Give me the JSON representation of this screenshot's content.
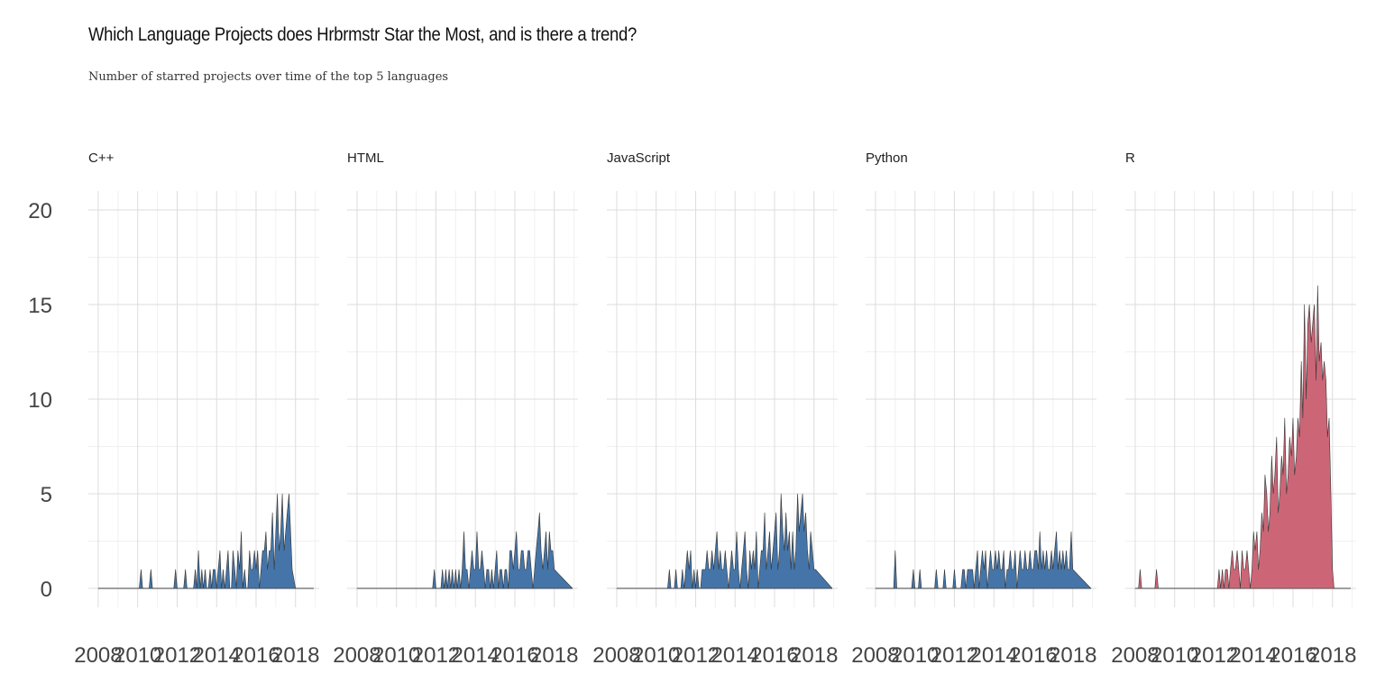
{
  "title": "Which Language Projects does Hrbrmstr Star the Most, and is there a trend?",
  "subtitle": "Number of starred projects over time of the top 5 languages",
  "chart_data": {
    "type": "area",
    "title": "Which Language Projects does Hrbrmstr Star the Most, and is there a trend?",
    "subtitle": "Number of starred projects over time of the top 5 languages",
    "xlabel": "",
    "ylabel": "",
    "x_unit": "year",
    "xlim": [
      2007.5,
      2019.2
    ],
    "ylim": [
      0,
      21
    ],
    "x_ticks": [
      2008,
      2010,
      2012,
      2014,
      2016,
      2018
    ],
    "y_ticks": [
      0,
      5,
      10,
      15,
      20
    ],
    "grid": true,
    "legend": "none",
    "colors": {
      "default": "#4575a8",
      "highlight": "#cc6677",
      "outline": "#333333",
      "baseline": "#888888"
    },
    "facets": [
      {
        "name": "C++",
        "color": "#4575a8",
        "x": [
          2008.0,
          2010.08,
          2010.17,
          2010.25,
          2010.58,
          2010.67,
          2010.75,
          2011.83,
          2011.92,
          2012.0,
          2012.33,
          2012.42,
          2012.5,
          2012.83,
          2012.92,
          2013.0,
          2013.08,
          2013.17,
          2013.25,
          2013.33,
          2013.42,
          2013.5,
          2013.58,
          2013.67,
          2013.75,
          2013.83,
          2013.92,
          2014.0,
          2014.08,
          2014.17,
          2014.25,
          2014.33,
          2014.42,
          2014.5,
          2014.58,
          2014.67,
          2014.75,
          2014.83,
          2014.92,
          2015.0,
          2015.08,
          2015.17,
          2015.25,
          2015.33,
          2015.42,
          2015.5,
          2015.58,
          2015.67,
          2015.75,
          2015.83,
          2015.92,
          2016.0,
          2016.08,
          2016.17,
          2016.25,
          2016.33,
          2016.42,
          2016.5,
          2016.58,
          2016.67,
          2016.75,
          2016.83,
          2016.92,
          2017.0,
          2017.08,
          2017.17,
          2017.25,
          2017.33,
          2017.42,
          2017.5,
          2017.58,
          2017.67,
          2017.75,
          2017.83,
          2018.0,
          2018.92
        ],
        "y": [
          0,
          0,
          1,
          0,
          0,
          1,
          0,
          0,
          1,
          0,
          0,
          1,
          0,
          0,
          1,
          0,
          2,
          0,
          1,
          0,
          1,
          0,
          0,
          1,
          0,
          1,
          1,
          0,
          1,
          2,
          0,
          1,
          0,
          1,
          2,
          0,
          0,
          2,
          1,
          0,
          2,
          1,
          3,
          0,
          1,
          0,
          0,
          2,
          1,
          1,
          2,
          1,
          2,
          0,
          1,
          2,
          2,
          3,
          1,
          2,
          2,
          4,
          1,
          3,
          5,
          2,
          3,
          5,
          2,
          3,
          4,
          5,
          3,
          1,
          0,
          0
        ]
      },
      {
        "name": "HTML",
        "color": "#4575a8",
        "x": [
          2008.0,
          2011.83,
          2011.92,
          2012.0,
          2012.25,
          2012.33,
          2012.42,
          2012.5,
          2012.58,
          2012.67,
          2012.75,
          2012.83,
          2012.92,
          2013.0,
          2013.08,
          2013.17,
          2013.25,
          2013.33,
          2013.42,
          2013.5,
          2013.58,
          2013.67,
          2013.75,
          2013.83,
          2013.92,
          2014.0,
          2014.08,
          2014.17,
          2014.25,
          2014.33,
          2014.42,
          2014.5,
          2014.58,
          2014.67,
          2014.75,
          2014.83,
          2014.92,
          2015.0,
          2015.08,
          2015.17,
          2015.25,
          2015.33,
          2015.42,
          2015.5,
          2015.58,
          2015.67,
          2015.75,
          2015.83,
          2015.92,
          2016.0,
          2016.08,
          2016.17,
          2016.25,
          2016.33,
          2016.42,
          2016.5,
          2016.58,
          2016.67,
          2016.75,
          2016.83,
          2016.92,
          2017.0,
          2017.08,
          2017.17,
          2017.25,
          2017.33,
          2017.42,
          2017.5,
          2017.58,
          2017.67,
          2017.75,
          2017.83,
          2017.92,
          2018.0,
          2018.92
        ],
        "y": [
          0,
          0,
          1,
          0,
          0,
          1,
          0,
          1,
          0,
          1,
          0,
          1,
          0,
          1,
          0,
          1,
          0,
          1,
          3,
          1,
          1,
          0,
          1,
          2,
          1,
          1,
          3,
          1,
          1,
          2,
          1,
          0,
          1,
          1,
          0,
          1,
          0,
          1,
          2,
          0,
          1,
          1,
          0,
          1,
          1,
          0,
          2,
          2,
          1,
          2,
          3,
          1,
          1,
          2,
          2,
          1,
          1,
          2,
          2,
          1,
          0,
          1,
          2,
          3,
          4,
          2,
          1,
          2,
          3,
          1,
          3,
          2,
          2,
          1,
          0
        ]
      },
      {
        "name": "JavaScript",
        "color": "#4575a8",
        "x": [
          2008.0,
          2010.58,
          2010.67,
          2010.75,
          2010.92,
          2011.0,
          2011.08,
          2011.25,
          2011.33,
          2011.42,
          2011.5,
          2011.58,
          2011.67,
          2011.75,
          2011.83,
          2011.92,
          2012.0,
          2012.08,
          2012.17,
          2012.25,
          2012.33,
          2012.42,
          2012.5,
          2012.58,
          2012.67,
          2012.75,
          2012.83,
          2012.92,
          2013.0,
          2013.08,
          2013.17,
          2013.25,
          2013.33,
          2013.42,
          2013.5,
          2013.58,
          2013.67,
          2013.75,
          2013.83,
          2013.92,
          2014.0,
          2014.08,
          2014.17,
          2014.25,
          2014.33,
          2014.42,
          2014.5,
          2014.58,
          2014.67,
          2014.75,
          2014.83,
          2014.92,
          2015.0,
          2015.08,
          2015.17,
          2015.25,
          2015.33,
          2015.42,
          2015.5,
          2015.58,
          2015.67,
          2015.75,
          2015.83,
          2015.92,
          2016.0,
          2016.08,
          2016.17,
          2016.25,
          2016.33,
          2016.42,
          2016.5,
          2016.58,
          2016.67,
          2016.75,
          2016.83,
          2016.92,
          2017.0,
          2017.08,
          2017.17,
          2017.25,
          2017.33,
          2017.42,
          2017.5,
          2017.58,
          2017.67,
          2017.75,
          2017.83,
          2017.92,
          2018.0,
          2018.08,
          2018.92
        ],
        "y": [
          0,
          0,
          1,
          0,
          0,
          1,
          0,
          0,
          1,
          0,
          1,
          2,
          1,
          2,
          0,
          1,
          0,
          1,
          0,
          0,
          1,
          1,
          1,
          2,
          1,
          1,
          2,
          1,
          2,
          3,
          1,
          2,
          1,
          1,
          2,
          1,
          0,
          1,
          2,
          1,
          1,
          3,
          1,
          0,
          1,
          2,
          3,
          1,
          0,
          2,
          1,
          2,
          1,
          3,
          0,
          1,
          2,
          2,
          4,
          1,
          2,
          3,
          1,
          2,
          3,
          4,
          1,
          2,
          5,
          3,
          2,
          4,
          2,
          3,
          1,
          3,
          1,
          2,
          5,
          3,
          4,
          5,
          3,
          4,
          2,
          1,
          3,
          2,
          1,
          1,
          0
        ]
      },
      {
        "name": "Python",
        "color": "#4575a8",
        "x": [
          2008.0,
          2008.92,
          2009.0,
          2009.08,
          2009.83,
          2009.92,
          2010.0,
          2010.17,
          2010.25,
          2010.33,
          2011.0,
          2011.08,
          2011.17,
          2011.42,
          2011.5,
          2011.58,
          2011.92,
          2012.0,
          2012.08,
          2012.33,
          2012.42,
          2012.5,
          2012.58,
          2012.67,
          2012.75,
          2012.83,
          2012.92,
          2013.0,
          2013.08,
          2013.17,
          2013.25,
          2013.33,
          2013.42,
          2013.5,
          2013.58,
          2013.67,
          2013.75,
          2013.83,
          2013.92,
          2014.0,
          2014.08,
          2014.17,
          2014.25,
          2014.33,
          2014.42,
          2014.5,
          2014.58,
          2014.67,
          2014.75,
          2014.83,
          2014.92,
          2015.0,
          2015.08,
          2015.17,
          2015.25,
          2015.33,
          2015.42,
          2015.5,
          2015.58,
          2015.67,
          2015.75,
          2015.83,
          2015.92,
          2016.0,
          2016.08,
          2016.17,
          2016.25,
          2016.33,
          2016.42,
          2016.5,
          2016.58,
          2016.67,
          2016.75,
          2016.83,
          2016.92,
          2017.0,
          2017.08,
          2017.17,
          2017.25,
          2017.33,
          2017.42,
          2017.5,
          2017.58,
          2017.67,
          2017.75,
          2017.83,
          2017.92,
          2018.0,
          2018.92
        ],
        "y": [
          0,
          0,
          2,
          0,
          0,
          1,
          0,
          0,
          1,
          0,
          0,
          1,
          0,
          0,
          1,
          0,
          0,
          1,
          0,
          0,
          1,
          1,
          0,
          1,
          1,
          1,
          1,
          0,
          1,
          2,
          0,
          1,
          2,
          1,
          2,
          0,
          1,
          2,
          1,
          1,
          2,
          1,
          2,
          1,
          1,
          2,
          0,
          1,
          1,
          2,
          1,
          1,
          2,
          0,
          1,
          2,
          1,
          1,
          2,
          1,
          1,
          2,
          1,
          1,
          2,
          2,
          1,
          3,
          1,
          2,
          1,
          2,
          1,
          1,
          2,
          1,
          2,
          3,
          1,
          2,
          1,
          2,
          1,
          2,
          1,
          1,
          3,
          1,
          0
        ]
      },
      {
        "name": "R",
        "color": "#cc6677",
        "x": [
          2008.0,
          2008.17,
          2008.25,
          2008.33,
          2009.0,
          2009.08,
          2009.17,
          2012.17,
          2012.25,
          2012.33,
          2012.42,
          2012.5,
          2012.58,
          2012.67,
          2012.75,
          2012.83,
          2012.92,
          2013.0,
          2013.08,
          2013.17,
          2013.25,
          2013.33,
          2013.42,
          2013.5,
          2013.58,
          2013.67,
          2013.75,
          2013.83,
          2013.92,
          2014.0,
          2014.08,
          2014.17,
          2014.25,
          2014.33,
          2014.42,
          2014.5,
          2014.58,
          2014.67,
          2014.75,
          2014.83,
          2014.92,
          2015.0,
          2015.08,
          2015.17,
          2015.25,
          2015.33,
          2015.42,
          2015.5,
          2015.58,
          2015.67,
          2015.75,
          2015.83,
          2015.92,
          2016.0,
          2016.08,
          2016.17,
          2016.25,
          2016.33,
          2016.42,
          2016.5,
          2016.58,
          2016.67,
          2016.75,
          2016.83,
          2016.92,
          2017.0,
          2017.08,
          2017.17,
          2017.25,
          2017.33,
          2017.42,
          2017.5,
          2017.58,
          2017.67,
          2017.75,
          2017.83,
          2017.92,
          2018.0,
          2018.08,
          2018.92
        ],
        "y": [
          0,
          0,
          1,
          0,
          0,
          1,
          0,
          0,
          1,
          0,
          1,
          0,
          1,
          1,
          0,
          1,
          2,
          1,
          1,
          2,
          1,
          0,
          2,
          1,
          1,
          2,
          1,
          0,
          1,
          3,
          2,
          3,
          1,
          2,
          4,
          3,
          6,
          5,
          3,
          4,
          7,
          5,
          6,
          8,
          4,
          5,
          7,
          6,
          9,
          5,
          6,
          8,
          7,
          9,
          6,
          7,
          9,
          8,
          12,
          9,
          15,
          10,
          14,
          15,
          13,
          14,
          15,
          11,
          16,
          12,
          13,
          11,
          12,
          11,
          8,
          9,
          5,
          1,
          0,
          0
        ]
      }
    ]
  }
}
